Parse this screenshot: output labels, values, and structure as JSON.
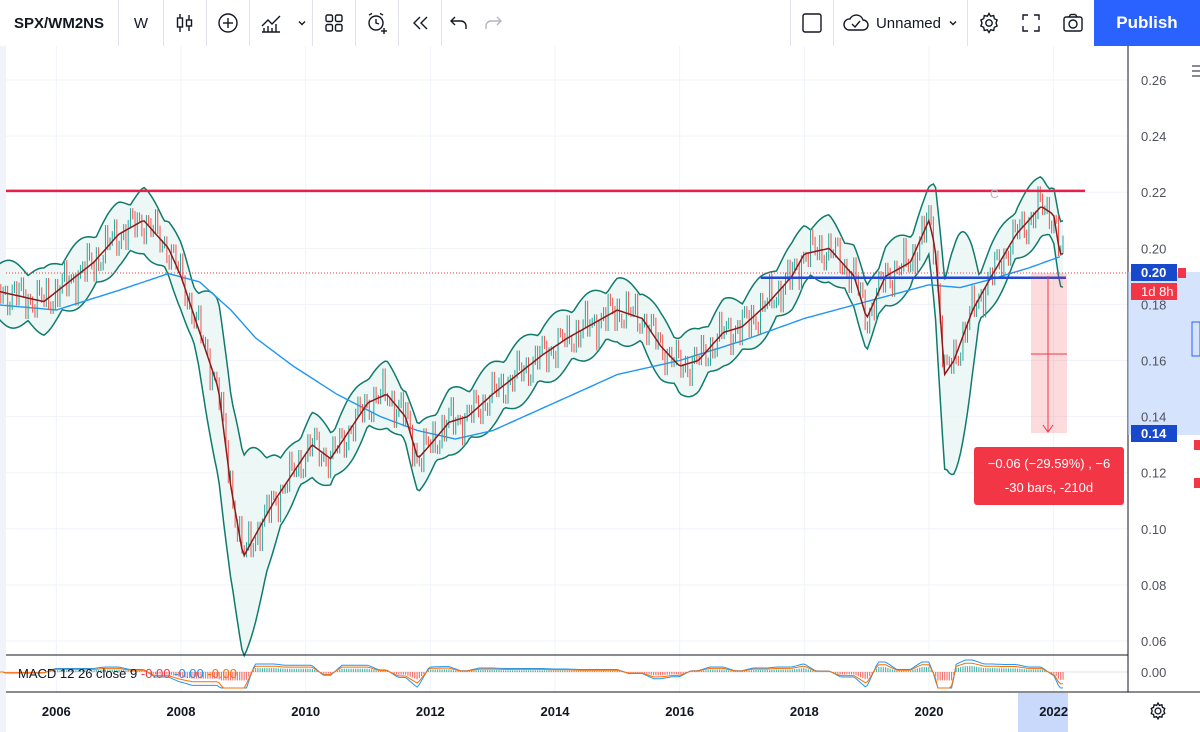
{
  "toolbar": {
    "symbol": "SPX/WM2NS",
    "interval": "W",
    "layout_name": "Unnamed",
    "publish_label": "Publish",
    "icons": [
      "candles-icon",
      "add-indicator-icon",
      "indicators-icon",
      "chevron-down-icon",
      "templates-icon",
      "alert-icon",
      "replay-icon",
      "undo-icon",
      "redo-icon",
      "fullscreen-square-icon",
      "cloud-icon",
      "settings-icon",
      "fullscreen-icon",
      "screenshot-icon"
    ]
  },
  "price_axis": {
    "labels": [
      "0.26",
      "0.24",
      "0.22",
      "0.20",
      "0.18",
      "0.16",
      "0.14",
      "0.12",
      "0.10",
      "0.08",
      "0.06"
    ],
    "current_price": "0.20",
    "countdown": "1d 8h",
    "measure_low_price": "0.14"
  },
  "macd": {
    "label": "MACD 12 26 close 9",
    "values": [
      "-0.00",
      "-0.00",
      "-0.00"
    ],
    "axis_label": "0.00"
  },
  "time_axis": {
    "labels": [
      "2006",
      "2008",
      "2010",
      "2012",
      "2014",
      "2016",
      "2018",
      "2020",
      "2022"
    ]
  },
  "measure": {
    "line1": "−0.06 (−29.59%) , −6",
    "line2": "-30 bars, -210d"
  },
  "colors": {
    "price_line": "#8b1a1a",
    "bands": "#0f7b6c",
    "band_fill": "#e8f5f2",
    "ma200": "#2196f3",
    "resistance": "#e91e4d",
    "support": "#1f47d6",
    "accent": "#2962ff",
    "measure": "#f23645"
  },
  "annotations": {
    "c_label": "C"
  },
  "chart_data": {
    "type": "line",
    "title": "SPX/WM2NS",
    "ylim": [
      0.055,
      0.27
    ],
    "xlim": [
      2005.0,
      2023.0
    ],
    "hlines": [
      {
        "name": "resistance",
        "y": 0.2205
      },
      {
        "name": "support",
        "y": 0.1895,
        "x_from": 2017.3,
        "x_to": 2022.4
      }
    ],
    "series": [
      {
        "x": [
          2005.0,
          2005.4,
          2005.8,
          2006.2,
          2006.6,
          2007.0,
          2007.4,
          2007.8,
          2008.0,
          2008.3,
          2008.6,
          2008.8,
          2009.0,
          2009.2,
          2009.5,
          2009.8,
          2010.1,
          2010.4,
          2010.7,
          2011.0,
          2011.3,
          2011.6,
          2011.8,
          2012.0,
          2012.3,
          2012.6,
          2013.0,
          2013.4,
          2013.8,
          2014.2,
          2014.6,
          2015.0,
          2015.4,
          2015.7,
          2016.0,
          2016.3,
          2016.7,
          2017.0,
          2017.4,
          2017.8,
          2018.0,
          2018.4,
          2018.8,
          2019.0,
          2019.3,
          2019.7,
          2020.0,
          2020.1,
          2020.25,
          2020.4,
          2020.7,
          2021.0,
          2021.4,
          2021.8,
          2022.0,
          2022.1
        ],
        "values": [
          0.185,
          0.183,
          0.181,
          0.188,
          0.195,
          0.205,
          0.21,
          0.2,
          0.19,
          0.17,
          0.15,
          0.115,
          0.09,
          0.098,
          0.11,
          0.12,
          0.13,
          0.125,
          0.135,
          0.145,
          0.148,
          0.14,
          0.125,
          0.13,
          0.138,
          0.14,
          0.148,
          0.155,
          0.162,
          0.168,
          0.173,
          0.178,
          0.175,
          0.165,
          0.158,
          0.16,
          0.17,
          0.172,
          0.18,
          0.19,
          0.198,
          0.2,
          0.19,
          0.175,
          0.19,
          0.195,
          0.21,
          0.2,
          0.155,
          0.16,
          0.178,
          0.19,
          0.205,
          0.215,
          0.212,
          0.198
        ]
      },
      {
        "x": [
          2005.0,
          2006.0,
          2007.0,
          2007.8,
          2008.3,
          2008.8,
          2009.2,
          2009.8,
          2010.5,
          2011.2,
          2011.8,
          2012.4,
          2013.0,
          2014.0,
          2015.0,
          2016.0,
          2017.0,
          2018.0,
          2019.0,
          2020.0,
          2020.5,
          2021.0,
          2021.6,
          2022.1
        ],
        "values": [
          0.18,
          0.178,
          0.185,
          0.191,
          0.188,
          0.178,
          0.168,
          0.158,
          0.148,
          0.14,
          0.135,
          0.132,
          0.135,
          0.145,
          0.155,
          0.16,
          0.167,
          0.175,
          0.181,
          0.187,
          0.186,
          0.189,
          0.193,
          0.197
        ]
      }
    ]
  }
}
